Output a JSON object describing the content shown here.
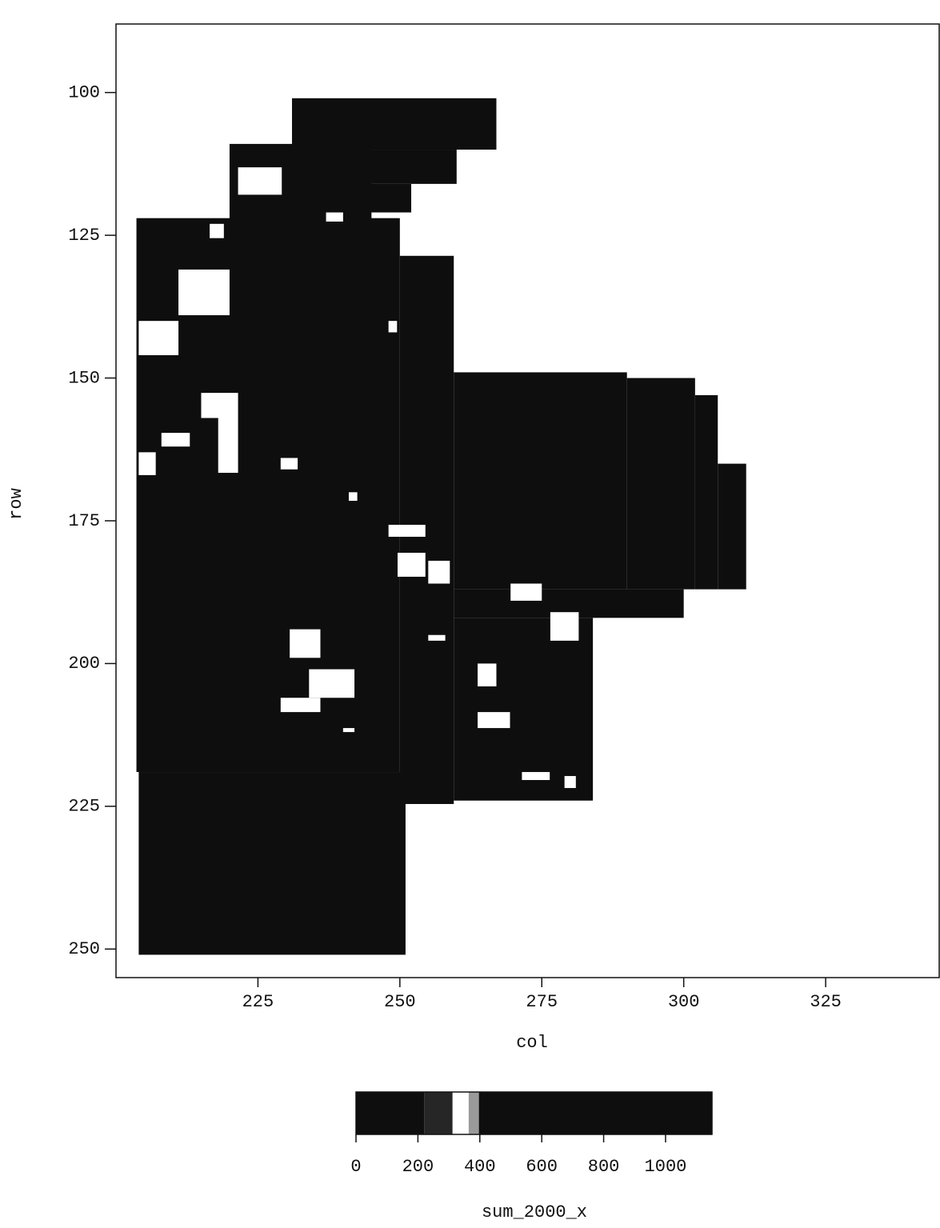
{
  "chart_data": {
    "type": "raster",
    "xlabel": "col",
    "ylabel": "row",
    "xlim": [
      200,
      345
    ],
    "ylim": [
      88,
      255
    ],
    "xticks": [
      225,
      250,
      275,
      300,
      325
    ],
    "yticks": [
      100,
      125,
      150,
      175,
      200,
      225,
      250
    ],
    "cells": [
      {
        "col": [
          231,
          267
        ],
        "row": [
          101,
          110
        ],
        "value": 50
      },
      {
        "col": [
          231,
          260
        ],
        "row": [
          110,
          116
        ],
        "value": 50
      },
      {
        "col": [
          231,
          252
        ],
        "row": [
          116,
          121
        ],
        "value": 50
      },
      {
        "col": [
          220,
          245
        ],
        "row": [
          109,
          129
        ],
        "value": 50
      },
      {
        "col": [
          203.6,
          250
        ],
        "row": [
          122,
          219
        ],
        "value": 50
      },
      {
        "col": [
          250,
          259.5
        ],
        "row": [
          128.6,
          224.6
        ],
        "value": 50
      },
      {
        "col": [
          259.5,
          290
        ],
        "row": [
          149,
          187
        ],
        "value": 50
      },
      {
        "col": [
          290,
          302
        ],
        "row": [
          150,
          187
        ],
        "value": 50
      },
      {
        "col": [
          302,
          306
        ],
        "row": [
          153,
          187
        ],
        "value": 50
      },
      {
        "col": [
          306,
          311
        ],
        "row": [
          165,
          187
        ],
        "value": 50
      },
      {
        "col": [
          259.5,
          300
        ],
        "row": [
          187,
          192
        ],
        "value": 50
      },
      {
        "col": [
          259.5,
          284
        ],
        "row": [
          192,
          224
        ],
        "value": 50
      },
      {
        "col": [
          204,
          251
        ],
        "row": [
          219,
          251
        ],
        "value": 50
      },
      {
        "col": [
          221.5,
          229.2
        ],
        "row": [
          113.1,
          117.9
        ],
        "value": 330
      },
      {
        "col": [
          216.5,
          219
        ],
        "row": [
          123,
          125.5
        ],
        "value": 330
      },
      {
        "col": [
          211,
          220
        ],
        "row": [
          131,
          139
        ],
        "value": 330
      },
      {
        "col": [
          204,
          211
        ],
        "row": [
          140,
          146
        ],
        "value": 330
      },
      {
        "col": [
          215,
          221.5
        ],
        "row": [
          152.6,
          157
        ],
        "value": 330
      },
      {
        "col": [
          218,
          221.5
        ],
        "row": [
          157,
          166.6
        ],
        "value": 330
      },
      {
        "col": [
          208,
          213
        ],
        "row": [
          159.6,
          162
        ],
        "value": 330
      },
      {
        "col": [
          204,
          207
        ],
        "row": [
          163,
          167
        ],
        "value": 330
      },
      {
        "col": [
          229,
          232
        ],
        "row": [
          164,
          166
        ],
        "value": 330
      },
      {
        "col": [
          248,
          254.5
        ],
        "row": [
          175.7,
          177.8
        ],
        "value": 330
      },
      {
        "col": [
          249.6,
          254.5
        ],
        "row": [
          180.6,
          184.8
        ],
        "value": 330
      },
      {
        "col": [
          255,
          258.8
        ],
        "row": [
          182,
          186
        ],
        "value": 330
      },
      {
        "col": [
          269.5,
          275
        ],
        "row": [
          186,
          189
        ],
        "value": 330
      },
      {
        "col": [
          276.5,
          281.5
        ],
        "row": [
          191,
          196
        ],
        "value": 330
      },
      {
        "col": [
          230.6,
          236
        ],
        "row": [
          194,
          199
        ],
        "value": 330
      },
      {
        "col": [
          234,
          242
        ],
        "row": [
          201,
          206
        ],
        "value": 330
      },
      {
        "col": [
          229,
          236
        ],
        "row": [
          206,
          208.5
        ],
        "value": 330
      },
      {
        "col": [
          255,
          258
        ],
        "row": [
          195,
          196
        ],
        "value": 330
      },
      {
        "col": [
          263.7,
          267
        ],
        "row": [
          200,
          204
        ],
        "value": 330
      },
      {
        "col": [
          263.7,
          269.4
        ],
        "row": [
          208.5,
          211.3
        ],
        "value": 330
      },
      {
        "col": [
          271.5,
          276.4
        ],
        "row": [
          219,
          220.4
        ],
        "value": 330
      },
      {
        "col": [
          279,
          281
        ],
        "row": [
          219.7,
          221.8
        ],
        "value": 330
      },
      {
        "col": [
          240,
          242
        ],
        "row": [
          211.3,
          212
        ],
        "value": 330
      },
      {
        "col": [
          237,
          240
        ],
        "row": [
          121,
          122.6
        ],
        "value": 330
      },
      {
        "col": [
          248,
          249.5
        ],
        "row": [
          140,
          142
        ],
        "value": 330
      },
      {
        "col": [
          241,
          242.5
        ],
        "row": [
          170,
          171.5
        ],
        "value": 330
      }
    ],
    "colorbar": {
      "label": "sum_2000_x",
      "lim": [
        0,
        1150
      ],
      "ticks": [
        0,
        200,
        400,
        600,
        800,
        1000
      ],
      "segments": [
        {
          "range": [
            0,
            220
          ],
          "color": "#0e0e0e"
        },
        {
          "range": [
            220,
            312
          ],
          "color": "#262626"
        },
        {
          "range": [
            312,
            364
          ],
          "color": "#ffffff"
        },
        {
          "range": [
            364,
            397
          ],
          "color": "#9a9a9a"
        },
        {
          "range": [
            397,
            1150
          ],
          "color": "#0e0e0e"
        }
      ]
    }
  }
}
